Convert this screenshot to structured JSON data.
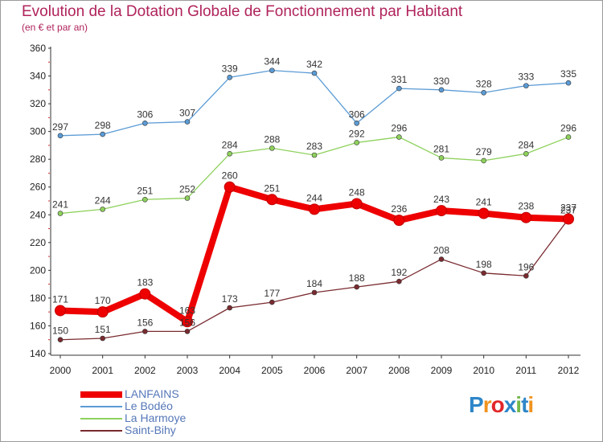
{
  "title": "Evolution de la Dotation Globale de Fonctionnement par Habitant",
  "subtitle": "(en € et par an)",
  "logo": {
    "text": "Proxiti",
    "letters": [
      "P",
      "r",
      "o",
      "x",
      "i",
      "t",
      "i"
    ],
    "colors": [
      "#2e86c8",
      "#f0931e",
      "#e2262a",
      "#2e86c8",
      "#74b84a",
      "#2e86c8",
      "#f0931e"
    ]
  },
  "chart_data": {
    "type": "line",
    "title": "Evolution de la Dotation Globale de Fonctionnement par Habitant",
    "subtitle": "(en € et par an)",
    "xlabel": "",
    "ylabel": "",
    "categories": [
      "2000",
      "2001",
      "2002",
      "2003",
      "2004",
      "2005",
      "2006",
      "2007",
      "2008",
      "2009",
      "2010",
      "2011",
      "2012"
    ],
    "ylim": [
      140,
      360
    ],
    "yticks": [
      140,
      160,
      180,
      200,
      220,
      240,
      260,
      280,
      300,
      320,
      340,
      360
    ],
    "grid": false,
    "legend_position": "bottom-left",
    "series": [
      {
        "name": "Le Bodéo",
        "color": "#5b9bd5",
        "values": [
          297,
          298,
          306,
          307,
          339,
          344,
          342,
          306,
          331,
          330,
          328,
          333,
          335
        ]
      },
      {
        "name": "La Harmoye",
        "color": "#8ed15c",
        "values": [
          241,
          244,
          251,
          252,
          284,
          288,
          283,
          292,
          296,
          281,
          279,
          284,
          296
        ]
      },
      {
        "name": "Saint-Bihy",
        "color": "#7a2b30",
        "values": [
          150,
          151,
          156,
          156,
          173,
          177,
          184,
          188,
          192,
          208,
          198,
          196,
          237
        ]
      },
      {
        "name": "LANFAINS",
        "color": "#ee0000",
        "values": [
          171,
          170,
          183,
          163,
          260,
          251,
          244,
          248,
          236,
          243,
          241,
          238,
          237
        ]
      }
    ],
    "legend": [
      "LANFAINS",
      "Le Bodéo",
      "La Harmoye",
      "Saint-Bihy"
    ]
  }
}
